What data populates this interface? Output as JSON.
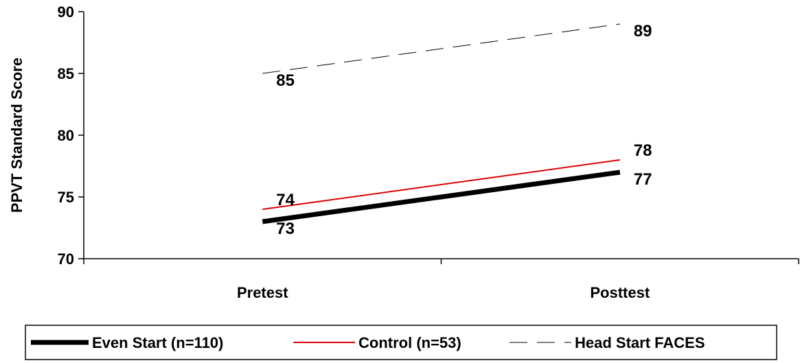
{
  "chart_data": {
    "type": "line",
    "title": "",
    "xlabel": "",
    "ylabel": "PPVT Standard Score",
    "categories": [
      "Pretest",
      "Posttest"
    ],
    "ylim": [
      70,
      90
    ],
    "yticks": [
      70,
      75,
      80,
      85,
      90
    ],
    "grid": false,
    "legend_position": "bottom",
    "series": [
      {
        "name": "Even Start (n=110)",
        "values": [
          73,
          77
        ],
        "labels": [
          "73",
          "77"
        ],
        "color": "#000000",
        "style": "solid-thick"
      },
      {
        "name": "Control (n=53)",
        "values": [
          74,
          78
        ],
        "labels": [
          "74",
          "78"
        ],
        "color": "#e00000",
        "style": "solid"
      },
      {
        "name": "Head Start FACES",
        "values": [
          85,
          89
        ],
        "labels": [
          "85",
          "89"
        ],
        "color": "#000000",
        "style": "dashed"
      }
    ]
  }
}
